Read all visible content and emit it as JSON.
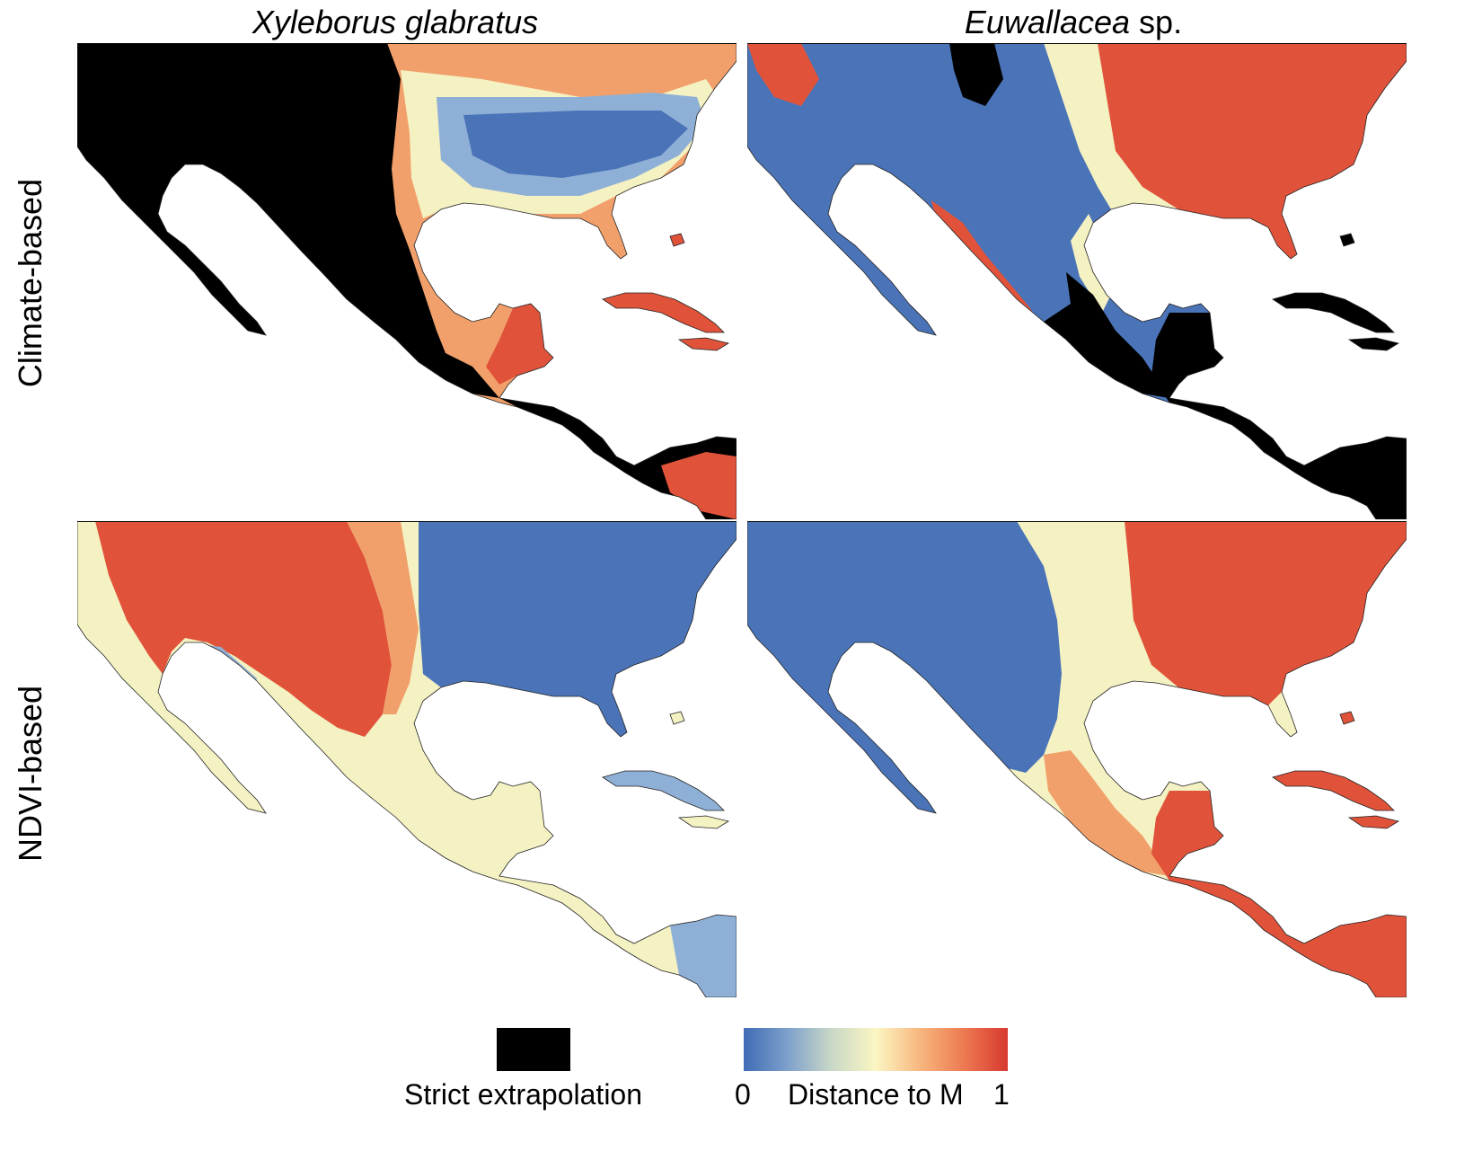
{
  "columns": [
    {
      "species": "Xyleborus glabratus",
      "suffix": ""
    },
    {
      "species": "Euwallacea",
      "suffix": " sp."
    }
  ],
  "rows": [
    "Climate-based",
    "NDVI-based"
  ],
  "panels": [
    {
      "id": "climate-xyleborus",
      "variable": "climate",
      "species": "Xyleborus glabratus",
      "description": "extrapolation black over Mexico west highlands and Central America; low distance blue over southeast US; high red around Gulf coasts, Yucatan, Caribbean"
    },
    {
      "id": "climate-euwallacea",
      "variable": "climate",
      "species": "Euwallacea sp.",
      "description": "blue over Mexico and western US; red over eastern US; black over southern Mexico, Central America and Caribbean"
    },
    {
      "id": "ndvi-xyleborus",
      "variable": "NDVI",
      "species": "Xyleborus glabratus",
      "description": "red over western Mexico and southwest US; blue over eastern US; pale yellow over Central America"
    },
    {
      "id": "ndvi-euwallacea",
      "variable": "NDVI",
      "species": "Euwallacea sp.",
      "description": "blue over western Mexico; red over eastern US, Yucatan and Central America"
    }
  ],
  "legend": {
    "extrapolation_label": "Strict extrapolation",
    "extrapolation_color": "#000000",
    "gradient_label": "Distance to M",
    "gradient_min": "0",
    "gradient_max": "1",
    "gradient_colors": [
      "#3f6cb5",
      "#7ea0cc",
      "#c9d8c6",
      "#fbf6c3",
      "#f7b77e",
      "#ee7a52",
      "#d7392f"
    ]
  },
  "colors": {
    "blue": "#4a73b8",
    "light_blue": "#8fb0d6",
    "pale": "#f4f1c2",
    "orange": "#f2a06b",
    "red": "#e0533a",
    "black": "#000000"
  }
}
